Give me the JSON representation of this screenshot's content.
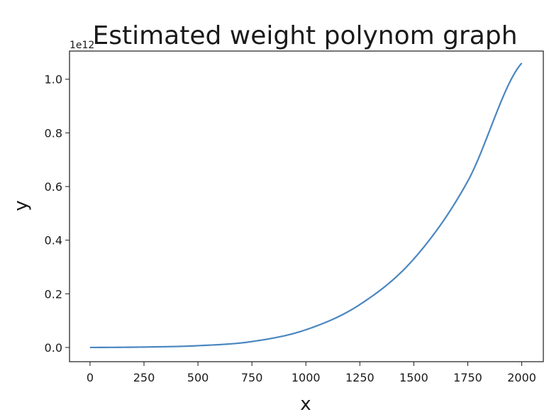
{
  "chart_data": {
    "type": "line",
    "title": "Estimated weight polynom graph",
    "xlabel": "x",
    "ylabel": "y",
    "y_offset_text": "1e12",
    "xlim": [
      -95,
      2100
    ],
    "ylim": [
      -0.053,
      1.105
    ],
    "x_ticks": [
      0,
      250,
      500,
      750,
      1000,
      1250,
      1500,
      1750,
      2000
    ],
    "x_tick_labels": [
      "0",
      "250",
      "500",
      "750",
      "1000",
      "1250",
      "1500",
      "1750",
      "2000"
    ],
    "y_ticks": [
      0.0,
      0.2,
      0.4,
      0.6,
      0.8,
      1.0
    ],
    "y_tick_labels": [
      "0.0",
      "0.2",
      "0.4",
      "0.6",
      "0.8",
      "1.0"
    ],
    "grid": false,
    "series": [
      {
        "color": "#4a86c0",
        "x": [
          0,
          250,
          500,
          750,
          1000,
          1250,
          1500,
          1750,
          2000
        ],
        "y": [
          0.0,
          0.0016,
          0.0066,
          0.022,
          0.066,
          0.16,
          0.33,
          0.62,
          1.06
        ]
      }
    ]
  }
}
